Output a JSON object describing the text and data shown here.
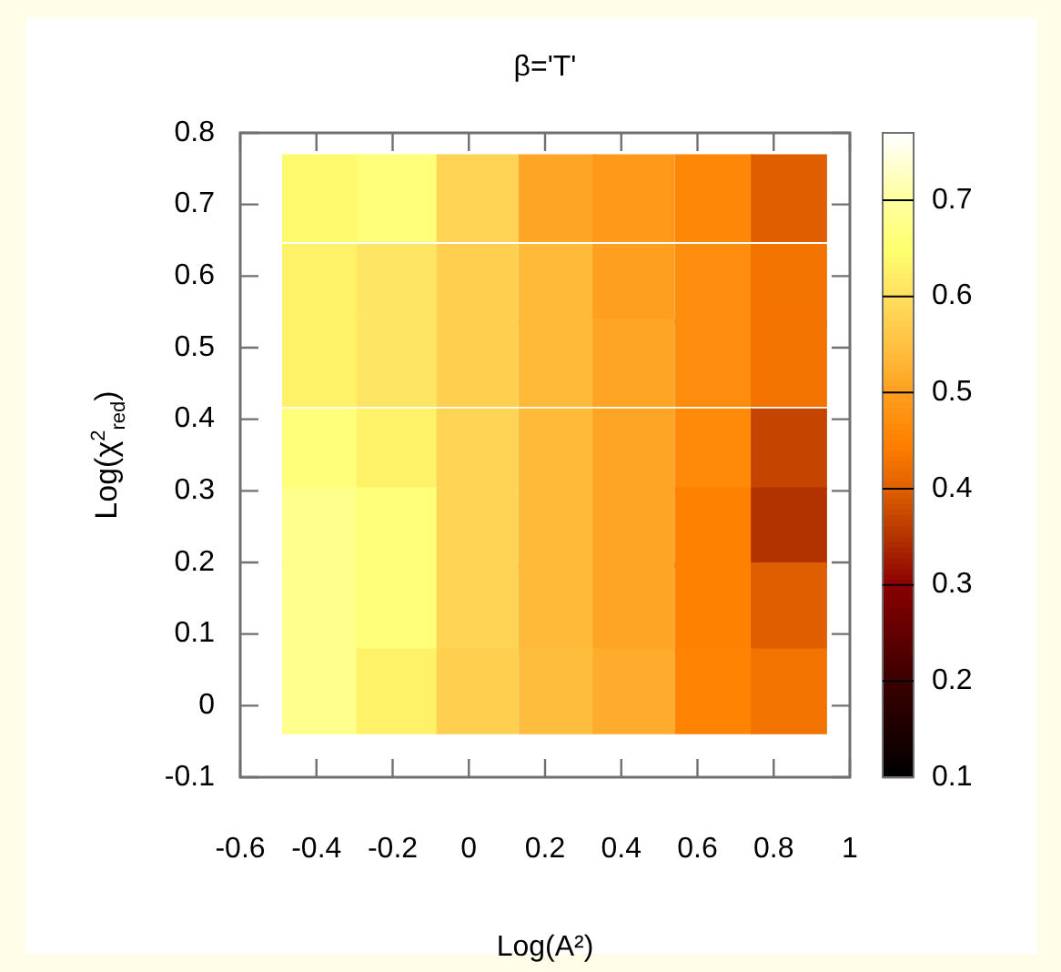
{
  "chart_data": {
    "type": "heatmap",
    "title": "β='T'",
    "xlabel": "Log(A²)",
    "ylabel": "Log(χ$^{2}$$_{red}$)",
    "x": [
      -0.39,
      -0.19,
      0.02,
      0.23,
      0.43,
      0.64,
      0.84
    ],
    "y": [
      0.71,
      0.59,
      0.48,
      0.36,
      0.25,
      0.14,
      0.02
    ],
    "cells": [
      [
        0.64,
        0.66,
        0.58,
        0.51,
        0.49,
        0.46,
        0.4
      ],
      [
        0.63,
        0.61,
        0.575,
        0.54,
        0.5,
        0.47,
        0.43
      ],
      [
        0.63,
        0.61,
        0.575,
        0.54,
        0.51,
        0.47,
        0.43
      ],
      [
        0.66,
        0.63,
        0.58,
        0.54,
        0.51,
        0.465,
        0.37
      ],
      [
        0.68,
        0.66,
        0.58,
        0.54,
        0.51,
        0.45,
        0.35
      ],
      [
        0.68,
        0.66,
        0.58,
        0.54,
        0.51,
        0.45,
        0.4
      ],
      [
        0.68,
        0.63,
        0.575,
        0.545,
        0.52,
        0.455,
        0.43
      ]
    ],
    "xlim": [
      -0.6,
      1
    ],
    "xticks": [
      -0.6,
      -0.4,
      -0.2,
      0,
      0.2,
      0.4,
      0.6,
      0.8,
      1
    ],
    "ylim": [
      -0.1,
      0.8
    ],
    "yticks": [
      -0.1,
      0,
      0.1,
      0.2,
      0.3,
      0.4,
      0.5,
      0.6,
      0.7,
      0.8
    ],
    "clim": [
      0.1,
      0.77
    ],
    "cticks": [
      0.1,
      0.2,
      0.3,
      0.4,
      0.5,
      0.6,
      0.7
    ]
  }
}
